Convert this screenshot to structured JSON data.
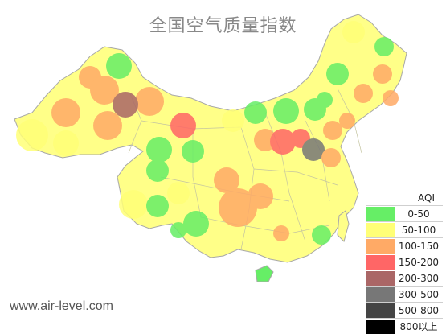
{
  "title": "全国空气质量指数",
  "legend": {
    "title": "AQI",
    "items": [
      {
        "label": "0-50",
        "color": "#66ee66"
      },
      {
        "label": "50-100",
        "color": "#ffff77"
      },
      {
        "label": "100-150",
        "color": "#ffaa66"
      },
      {
        "label": "150-200",
        "color": "#ff6666"
      },
      {
        "label": "200-300",
        "color": "#aa6666"
      },
      {
        "label": "300-500",
        "color": "#777777"
      },
      {
        "label": "500-800",
        "color": "#444444"
      },
      {
        "label": "800以上",
        "color": "#000000"
      }
    ]
  },
  "watermark": "www.air-level.com",
  "colors": {
    "map_base": "#ffff88",
    "border": "#b8b8b8"
  }
}
